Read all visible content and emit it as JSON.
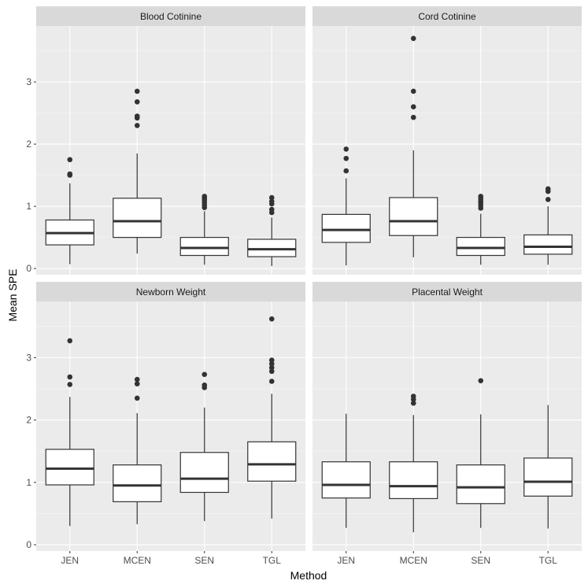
{
  "chart_data": {
    "type": "boxplot",
    "xlabel": "Method",
    "ylabel": "Mean SPE",
    "ylim": [
      -0.1,
      3.9
    ],
    "yticks": [
      0,
      1,
      2,
      3
    ],
    "categories": [
      "JEN",
      "MCEN",
      "SEN",
      "TGL"
    ],
    "facets": [
      {
        "title": "Blood Cotinine",
        "boxes": [
          {
            "category": "JEN",
            "whisker_low": 0.07,
            "q1": 0.38,
            "median": 0.57,
            "q3": 0.78,
            "whisker_high": 1.37,
            "outliers": [
              1.5,
              1.52,
              1.75
            ]
          },
          {
            "category": "MCEN",
            "whisker_low": 0.24,
            "q1": 0.5,
            "median": 0.76,
            "q3": 1.13,
            "whisker_high": 1.85,
            "outliers": [
              2.3,
              2.42,
              2.45,
              2.68,
              2.85
            ]
          },
          {
            "category": "SEN",
            "whisker_low": 0.06,
            "q1": 0.21,
            "median": 0.33,
            "q3": 0.5,
            "whisker_high": 0.92,
            "outliers": [
              0.98,
              1.02,
              1.06,
              1.1,
              1.13,
              1.16
            ]
          },
          {
            "category": "TGL",
            "whisker_low": 0.04,
            "q1": 0.19,
            "median": 0.31,
            "q3": 0.47,
            "whisker_high": 0.82,
            "outliers": [
              0.9,
              0.95,
              1.04,
              1.08,
              1.14
            ]
          }
        ]
      },
      {
        "title": "Cord Cotinine",
        "boxes": [
          {
            "category": "JEN",
            "whisker_low": 0.05,
            "q1": 0.42,
            "median": 0.62,
            "q3": 0.87,
            "whisker_high": 1.45,
            "outliers": [
              1.57,
              1.77,
              1.92
            ]
          },
          {
            "category": "MCEN",
            "whisker_low": 0.18,
            "q1": 0.53,
            "median": 0.76,
            "q3": 1.14,
            "whisker_high": 1.9,
            "outliers": [
              2.43,
              2.6,
              2.85,
              3.7
            ]
          },
          {
            "category": "SEN",
            "whisker_low": 0.06,
            "q1": 0.21,
            "median": 0.33,
            "q3": 0.5,
            "whisker_high": 0.88,
            "outliers": [
              0.97,
              1.01,
              1.05,
              1.08,
              1.12,
              1.16
            ]
          },
          {
            "category": "TGL",
            "whisker_low": 0.06,
            "q1": 0.23,
            "median": 0.35,
            "q3": 0.54,
            "whisker_high": 1.0,
            "outliers": [
              1.11,
              1.24,
              1.28
            ]
          }
        ]
      },
      {
        "title": "Newborn Weight",
        "boxes": [
          {
            "category": "JEN",
            "whisker_low": 0.3,
            "q1": 0.96,
            "median": 1.22,
            "q3": 1.53,
            "whisker_high": 2.37,
            "outliers": [
              2.57,
              2.69,
              3.27
            ]
          },
          {
            "category": "MCEN",
            "whisker_low": 0.33,
            "q1": 0.69,
            "median": 0.95,
            "q3": 1.28,
            "whisker_high": 2.11,
            "outliers": [
              2.35,
              2.58,
              2.65
            ]
          },
          {
            "category": "SEN",
            "whisker_low": 0.38,
            "q1": 0.84,
            "median": 1.06,
            "q3": 1.48,
            "whisker_high": 2.2,
            "outliers": [
              2.52,
              2.56,
              2.73
            ]
          },
          {
            "category": "TGL",
            "whisker_low": 0.42,
            "q1": 1.02,
            "median": 1.29,
            "q3": 1.65,
            "whisker_high": 2.42,
            "outliers": [
              2.62,
              2.78,
              2.84,
              2.9,
              2.96,
              3.62
            ]
          }
        ]
      },
      {
        "title": "Placental Weight",
        "boxes": [
          {
            "category": "JEN",
            "whisker_low": 0.27,
            "q1": 0.75,
            "median": 0.96,
            "q3": 1.33,
            "whisker_high": 2.1,
            "outliers": []
          },
          {
            "category": "MCEN",
            "whisker_low": 0.2,
            "q1": 0.74,
            "median": 0.94,
            "q3": 1.33,
            "whisker_high": 2.08,
            "outliers": [
              2.27,
              2.33,
              2.38
            ]
          },
          {
            "category": "SEN",
            "whisker_low": 0.27,
            "q1": 0.66,
            "median": 0.92,
            "q3": 1.28,
            "whisker_high": 2.09,
            "outliers": [
              2.63
            ]
          },
          {
            "category": "TGL",
            "whisker_low": 0.26,
            "q1": 0.78,
            "median": 1.01,
            "q3": 1.39,
            "whisker_high": 2.24,
            "outliers": []
          }
        ]
      }
    ]
  }
}
